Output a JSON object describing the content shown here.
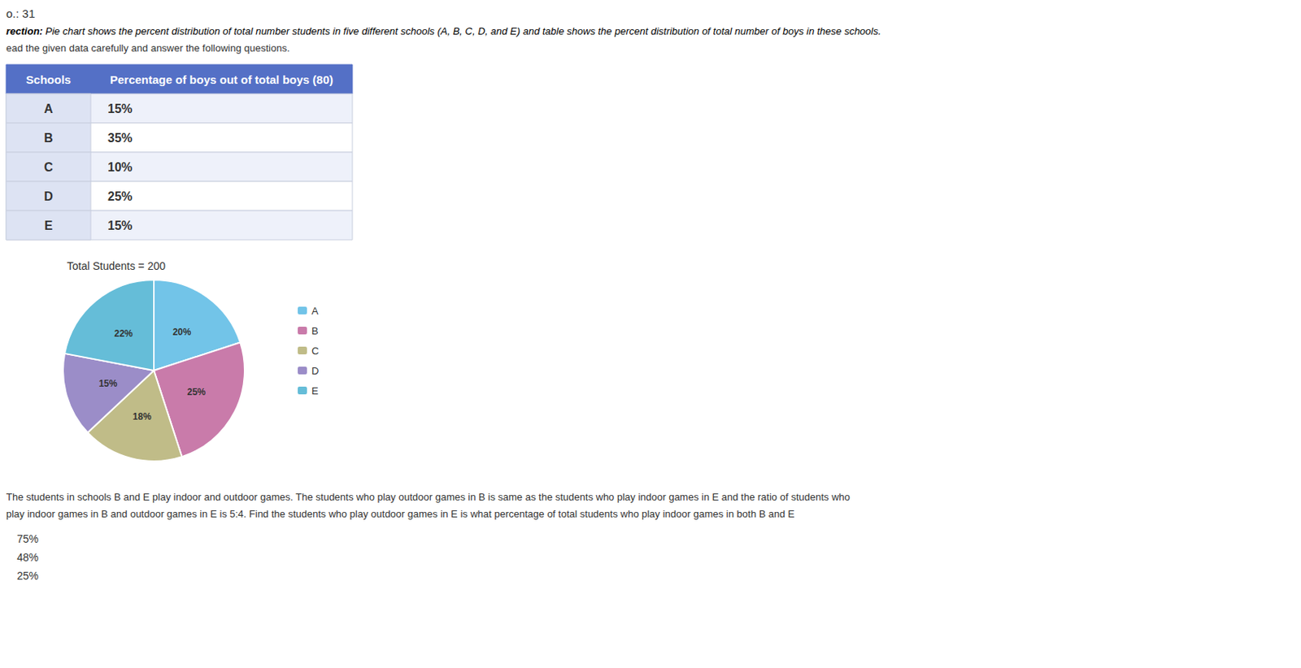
{
  "chart_data": [
    {
      "type": "table",
      "columns": [
        "Schools",
        "Percentage of boys out of total boys (80)"
      ],
      "rows": [
        [
          "A",
          "15%"
        ],
        [
          "B",
          "35%"
        ],
        [
          "C",
          "10%"
        ],
        [
          "D",
          "25%"
        ],
        [
          "E",
          "15%"
        ]
      ]
    },
    {
      "type": "pie",
      "title": "Total Students = 200",
      "categories": [
        "A",
        "B",
        "C",
        "D",
        "E"
      ],
      "values": [
        20,
        25,
        18,
        15,
        22
      ],
      "value_labels": [
        "20%",
        "25%",
        "18%",
        "15%",
        "22%"
      ],
      "colors": [
        "#72C4E8",
        "#C97BAA",
        "#C0BC88",
        "#9B8DC8",
        "#65BDD8"
      ],
      "data_labels": true,
      "legend": "right",
      "annotations": [
        "o.: 31",
        "rection:",
        "Pie chart shows the percent distribution of total number students in five different schools (A, B, C, D, and E) and table shows the percent distribution of total number of boys in these schools.",
        "ead the given data carefully and answer the following questions.",
        "The students in schools B and E play indoor and outdoor games. The students who play outdoor games in B is same as the students who play indoor games in E and the ratio of students who",
        "play indoor games in B and outdoor games in E is 5:4. Find the students who play outdoor games in E is what percentage of total students who play indoor games in both B and E",
        "75%",
        "48%",
        "25%"
      ]
    }
  ]
}
